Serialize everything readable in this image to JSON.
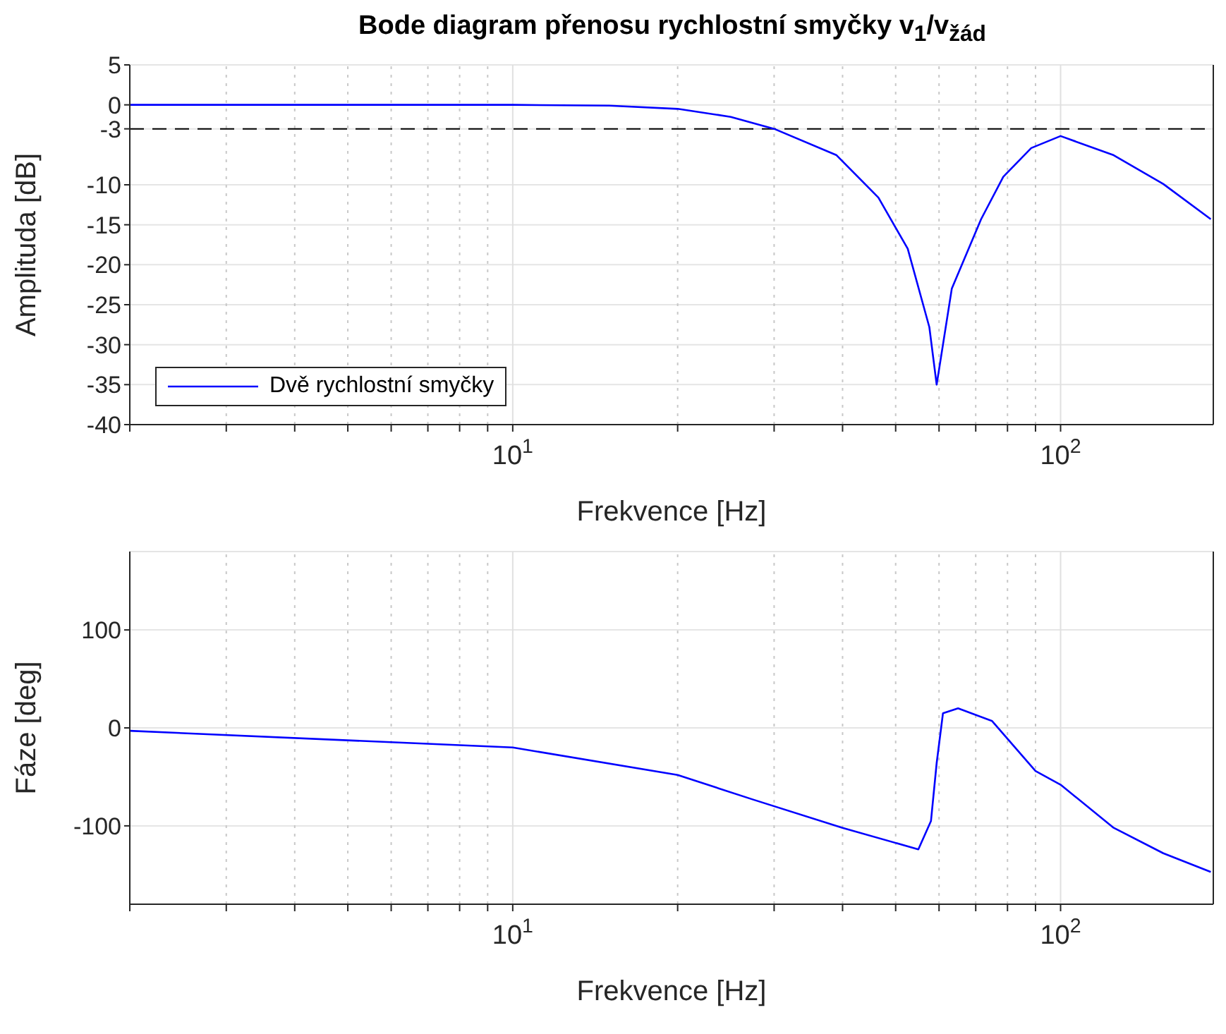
{
  "chart_data": [
    {
      "type": "line",
      "title": "Bode diagram přenosu rychlostní smyčky v$_{1}$/v$_{žád}$",
      "xlabel": "Frekvence [Hz]",
      "ylabel": "Amplituda [dB]",
      "log": "x",
      "grid": true,
      "legend": "bottom left",
      "marker": "none",
      "line_style": "solid",
      "xlim": [
        2,
        190
      ],
      "xticks": [
        {
          "value": 2,
          "label": null
        },
        {
          "value": 3,
          "label": null
        },
        {
          "value": 4,
          "label": null
        },
        {
          "value": 5,
          "label": null
        },
        {
          "value": 6,
          "label": null
        },
        {
          "value": 7,
          "label": null
        },
        {
          "value": 8,
          "label": null
        },
        {
          "value": 9,
          "label": null
        },
        {
          "value": 10,
          "label": "10$^{1}$"
        },
        {
          "value": 20,
          "label": null
        },
        {
          "value": 30,
          "label": null
        },
        {
          "value": 40,
          "label": null
        },
        {
          "value": 50,
          "label": null
        },
        {
          "value": 60,
          "label": null
        },
        {
          "value": 70,
          "label": null
        },
        {
          "value": 80,
          "label": null
        },
        {
          "value": 90,
          "label": null
        },
        {
          "value": 100,
          "label": "10$^{2}$"
        }
      ],
      "ylim": [
        -40,
        5
      ],
      "yticks": [
        -40,
        -35,
        -30,
        -25,
        -20,
        -15,
        -10,
        -3,
        0,
        5
      ],
      "ref_lines": [
        {
          "axis": "y",
          "value": -3,
          "color": "#000000",
          "line_style": "dashed"
        }
      ],
      "series": [
        {
          "name": "Dvě rychlostní smyčky",
          "color": "#0000ff",
          "x": [
            2,
            10,
            15,
            20,
            25,
            30,
            39,
            46.5,
            52.6,
            57.6,
            59.4,
            63.3,
            71.6,
            78.6,
            88.4,
            100,
            125,
            154,
            188
          ],
          "values": [
            0,
            0,
            -0.1,
            -0.5,
            -1.5,
            -3,
            -6.3,
            -11.6,
            -18,
            -27.8,
            -35,
            -23,
            -14.3,
            -9,
            -5.4,
            -3.9,
            -6.3,
            -9.9,
            -14.3
          ]
        }
      ]
    },
    {
      "type": "line",
      "xlabel": "Frekvence [Hz]",
      "ylabel": "Fáze [deg]",
      "log": "x",
      "grid": true,
      "marker": "none",
      "line_style": "solid",
      "xlim": [
        2,
        190
      ],
      "xticks": [
        {
          "value": 2,
          "label": null
        },
        {
          "value": 3,
          "label": null
        },
        {
          "value": 4,
          "label": null
        },
        {
          "value": 5,
          "label": null
        },
        {
          "value": 6,
          "label": null
        },
        {
          "value": 7,
          "label": null
        },
        {
          "value": 8,
          "label": null
        },
        {
          "value": 9,
          "label": null
        },
        {
          "value": 10,
          "label": "10$^{1}$"
        },
        {
          "value": 20,
          "label": null
        },
        {
          "value": 30,
          "label": null
        },
        {
          "value": 40,
          "label": null
        },
        {
          "value": 50,
          "label": null
        },
        {
          "value": 60,
          "label": null
        },
        {
          "value": 70,
          "label": null
        },
        {
          "value": 80,
          "label": null
        },
        {
          "value": 90,
          "label": null
        },
        {
          "value": 100,
          "label": "10$^{2}$"
        }
      ],
      "ylim": [
        -180,
        180
      ],
      "yticks": [
        -100,
        0,
        100
      ],
      "series": [
        {
          "color": "#0000ff",
          "x": [
            2,
            10,
            20,
            27.4,
            40,
            55,
            58,
            59.4,
            61,
            65,
            75,
            90,
            100,
            125,
            154,
            188
          ],
          "values": [
            -3,
            -20,
            -48,
            -73,
            -102,
            -124,
            -95,
            -36,
            15,
            20,
            7,
            -44,
            -58,
            -102,
            -128,
            -147
          ]
        }
      ]
    }
  ]
}
